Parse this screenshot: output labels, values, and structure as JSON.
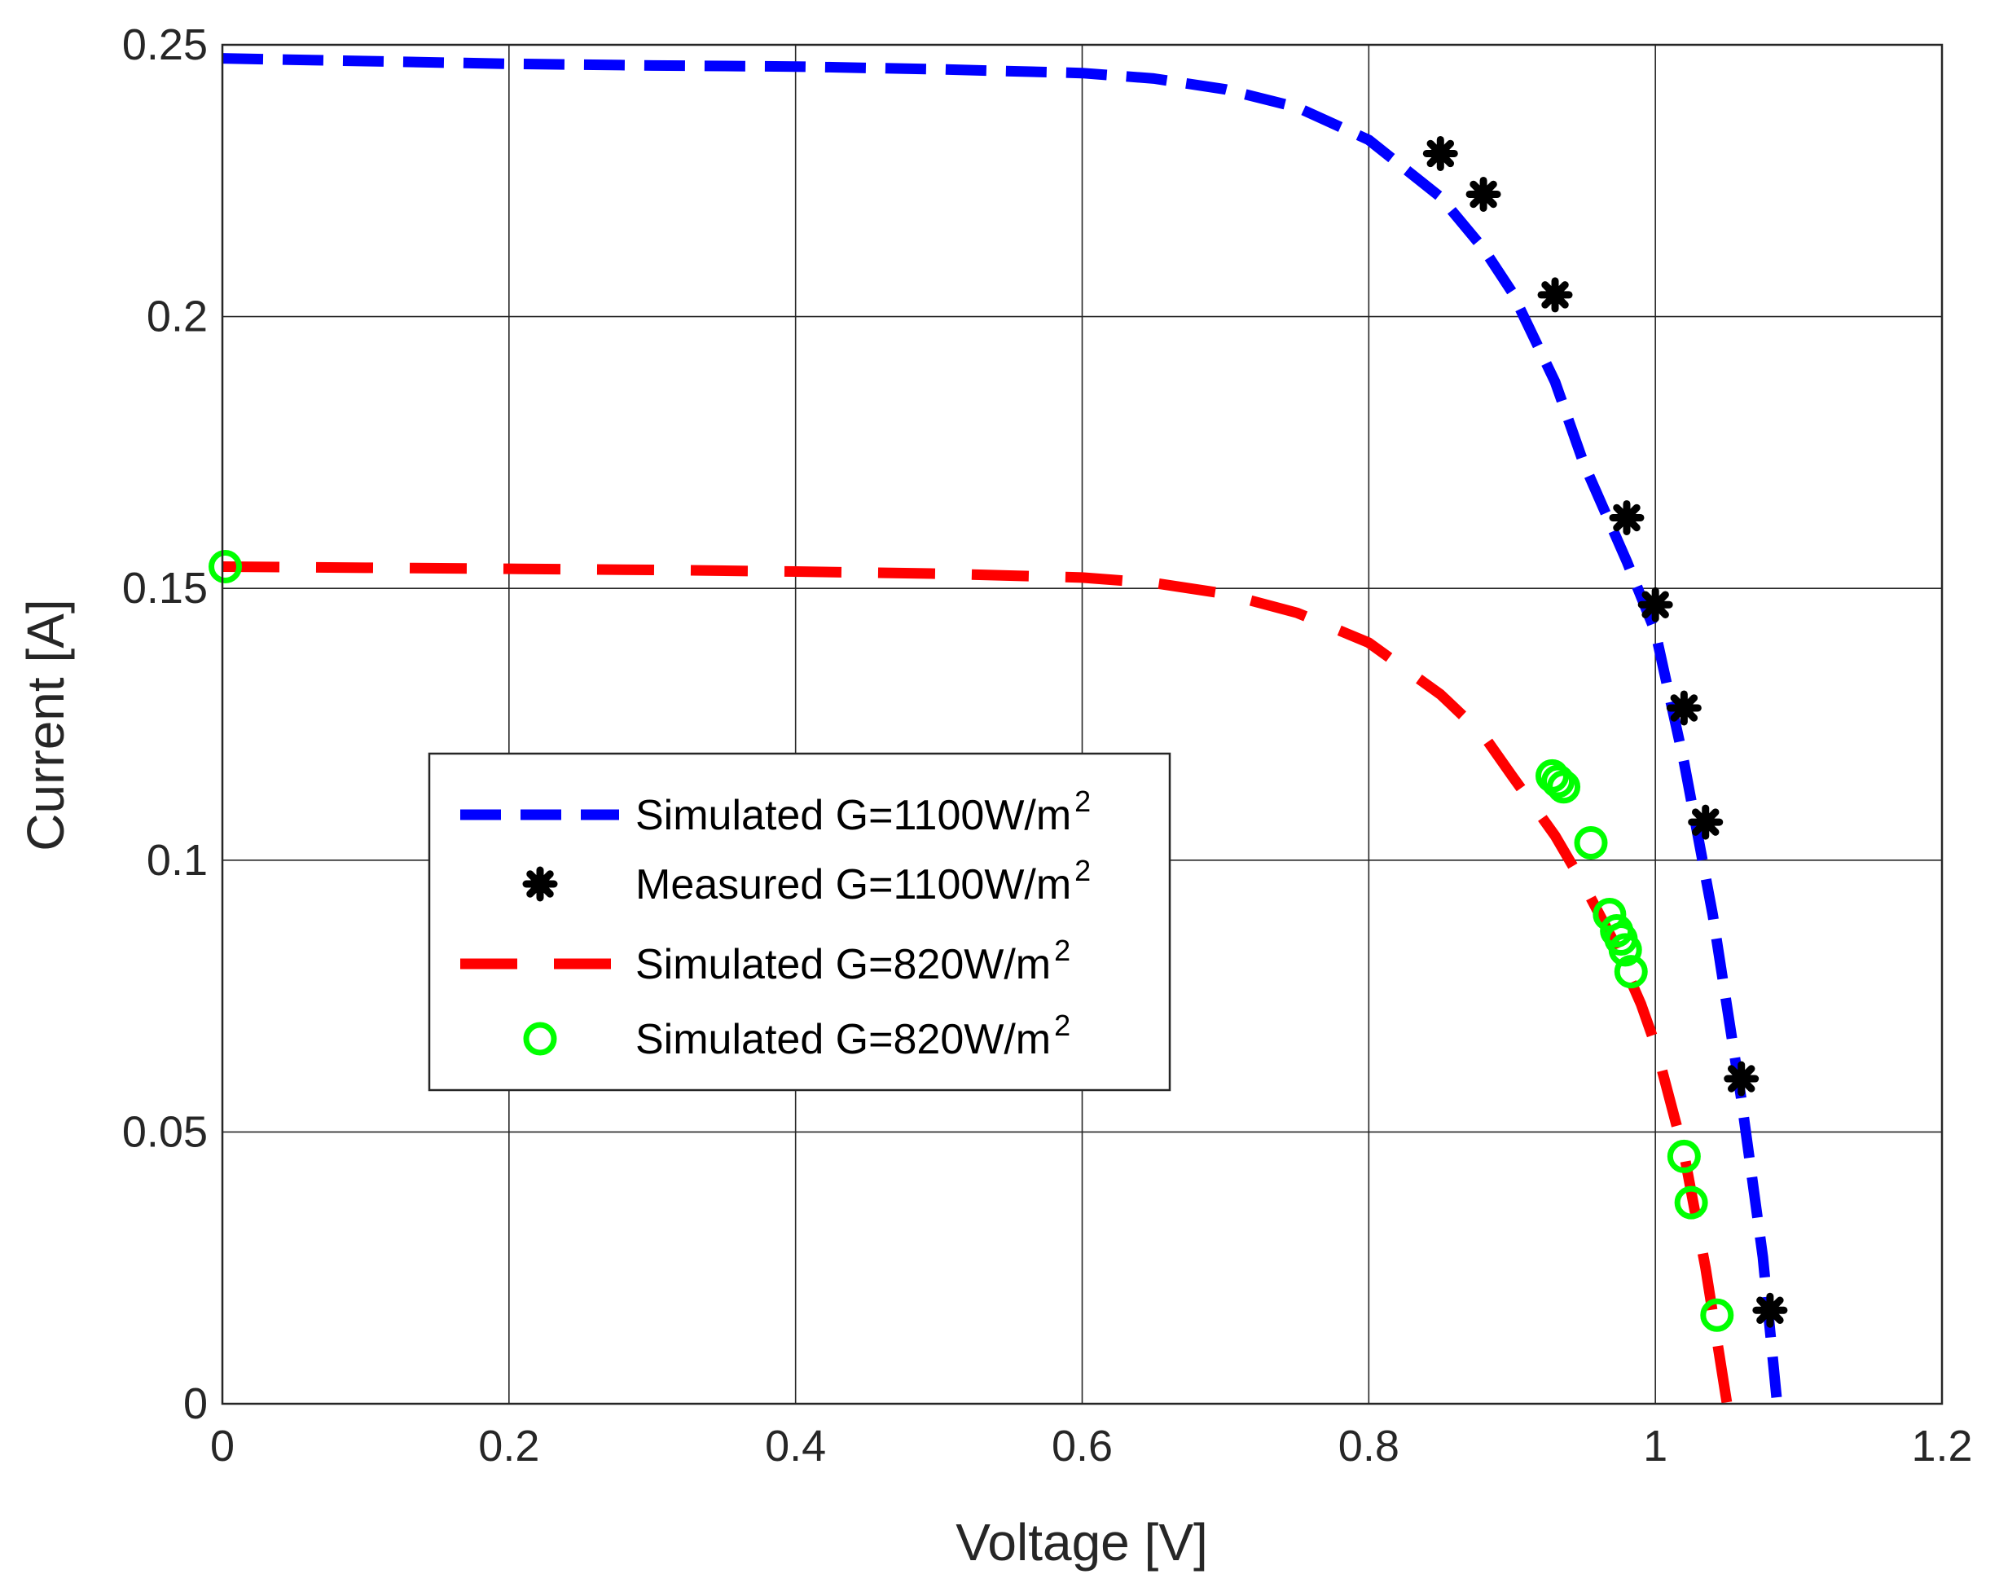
{
  "chart_data": {
    "type": "line",
    "title": "",
    "xlabel": "Voltage [V]",
    "ylabel": "Current [A]",
    "xlim": [
      0,
      1.2
    ],
    "ylim": [
      0,
      0.25
    ],
    "xticks": [
      0,
      0.2,
      0.4,
      0.6,
      0.8,
      1,
      1.2
    ],
    "yticks": [
      0,
      0.05,
      0.1,
      0.15,
      0.2,
      0.25
    ],
    "xtick_labels": [
      "0",
      "0.2",
      "0.4",
      "0.6",
      "0.8",
      "1",
      "1.2"
    ],
    "ytick_labels": [
      "0",
      "0.05",
      "0.1",
      "0.15",
      "0.2",
      "0.25"
    ],
    "grid": true,
    "legend_position": "center-left",
    "series": [
      {
        "name": "Simulated G=1100W/m2",
        "legend_main": "Simulated G=1100W/m",
        "legend_sup": "2",
        "kind": "line",
        "style": "dashed",
        "color": "#0000ff",
        "x": [
          0,
          0.1,
          0.2,
          0.3,
          0.4,
          0.5,
          0.6,
          0.65,
          0.7,
          0.75,
          0.8,
          0.85,
          0.88,
          0.9,
          0.93,
          0.95,
          0.98,
          1.0,
          1.02,
          1.04,
          1.06,
          1.075,
          1.085
        ],
        "y": [
          0.2475,
          0.247,
          0.2465,
          0.2462,
          0.246,
          0.2455,
          0.2448,
          0.2438,
          0.2418,
          0.2385,
          0.2325,
          0.222,
          0.2125,
          0.2045,
          0.188,
          0.173,
          0.155,
          0.142,
          0.118,
          0.09,
          0.056,
          0.027,
          0.0
        ]
      },
      {
        "name": "Measured G=1100W/m2",
        "legend_main": "Measured G=1100W/m",
        "legend_sup": "2",
        "kind": "scatter",
        "marker": "asterisk",
        "color": "#000000",
        "x": [
          0.85,
          0.88,
          0.93,
          0.98,
          1.0,
          1.02,
          1.035,
          1.06,
          1.08
        ],
        "y": [
          0.23,
          0.2225,
          0.204,
          0.163,
          0.147,
          0.128,
          0.107,
          0.0598,
          0.0172
        ]
      },
      {
        "name": "Simulated G=820W/m2",
        "legend_main": "Simulated G=820W/m",
        "legend_sup": "2",
        "kind": "line",
        "style": "dashed",
        "color": "#ff0000",
        "x": [
          0,
          0.1,
          0.2,
          0.3,
          0.4,
          0.5,
          0.6,
          0.65,
          0.7,
          0.75,
          0.8,
          0.85,
          0.88,
          0.9,
          0.93,
          0.95,
          0.97,
          0.99,
          1.0,
          1.02,
          1.035,
          1.05
        ],
        "y": [
          0.154,
          0.1538,
          0.1536,
          0.1534,
          0.1531,
          0.1527,
          0.152,
          0.151,
          0.149,
          0.1455,
          0.14,
          0.1305,
          0.123,
          0.1155,
          0.1045,
          0.0955,
          0.0855,
          0.0735,
          0.066,
          0.046,
          0.025,
          0.0
        ]
      },
      {
        "name": "Simulated G=820W/m2",
        "legend_main": "Simulated G=820W/m",
        "legend_sup": "2",
        "kind": "scatter",
        "marker": "circle",
        "color": "#00ff00",
        "x": [
          0.002,
          0.928,
          0.932,
          0.936,
          0.955,
          0.968,
          0.973,
          0.976,
          0.979,
          0.983,
          1.02,
          1.025,
          1.043
        ],
        "y": [
          0.154,
          0.1155,
          0.1145,
          0.1135,
          0.1032,
          0.09,
          0.087,
          0.0855,
          0.0835,
          0.0795,
          0.0455,
          0.037,
          0.0163
        ]
      }
    ]
  }
}
